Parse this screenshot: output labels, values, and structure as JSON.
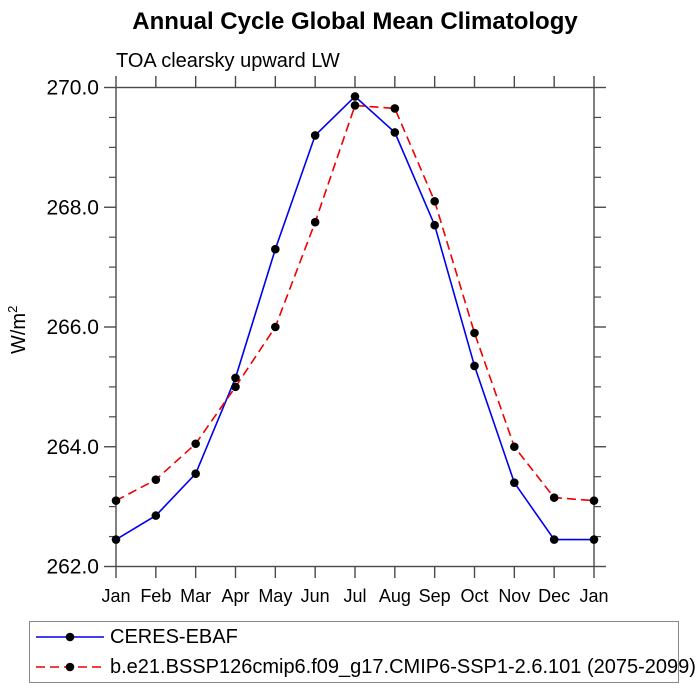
{
  "chart_data": {
    "type": "line",
    "title": "Annual Cycle Global Mean Climatology",
    "subtitle": "TOA clearsky upward LW",
    "ylabel_base": "W/m",
    "ylabel_sup": "2",
    "x_categories": [
      "Jan",
      "Feb",
      "Mar",
      "Apr",
      "May",
      "Jun",
      "Jul",
      "Aug",
      "Sep",
      "Oct",
      "Nov",
      "Dec",
      "Jan"
    ],
    "ylim": [
      262.0,
      270.0
    ],
    "ytick_major": [
      262.0,
      264.0,
      266.0,
      268.0,
      270.0
    ],
    "ytick_minor_step": 0.5,
    "grid": "off",
    "legend_position": "bottom-left-box",
    "axis_color": "#4a4a4a",
    "marker_color": "#000000",
    "series": [
      {
        "name": "CERES-EBAF",
        "color": "#0000ee",
        "style": "solid",
        "marker": "circle",
        "values": [
          262.45,
          262.85,
          263.55,
          265.15,
          267.3,
          269.2,
          269.85,
          269.25,
          267.7,
          265.35,
          263.4,
          262.45,
          262.45
        ]
      },
      {
        "name": "b.e21.BSSP126cmip6.f09_g17.CMIP6-SSP1-2.6.101 (2075-2099)",
        "color": "#ee0000",
        "style": "dashed",
        "marker": "circle",
        "values": [
          263.1,
          263.45,
          264.05,
          265.0,
          266.0,
          267.75,
          269.7,
          269.65,
          268.1,
          265.9,
          264.0,
          263.15,
          263.1
        ]
      }
    ]
  }
}
